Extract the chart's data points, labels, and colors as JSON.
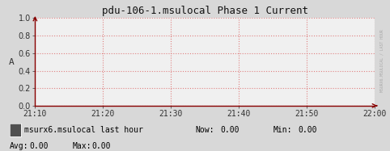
{
  "title": "pdu-106-1.msulocal Phase 1 Current",
  "ylabel": "A",
  "ylim": [
    0.0,
    1.0
  ],
  "yticks": [
    0.0,
    0.2,
    0.4,
    0.6,
    0.8,
    1.0
  ],
  "xtick_labels": [
    "21:10",
    "21:20",
    "21:30",
    "21:40",
    "21:50",
    "22:00"
  ],
  "bg_color": "#d8d8d8",
  "plot_bg_color": "#f0f0f0",
  "grid_color": "#e08080",
  "axis_color": "#880000",
  "title_color": "#111111",
  "tick_color": "#333333",
  "font_family": "monospace",
  "legend_label": "msurx6.msulocal last hour",
  "legend_box_color": "#505050",
  "now_val": "0.00",
  "min_val": "0.00",
  "avg_val": "0.00",
  "max_val": "0.00",
  "right_label": "MSURX6.MSULOCAL / LAST HOUR"
}
